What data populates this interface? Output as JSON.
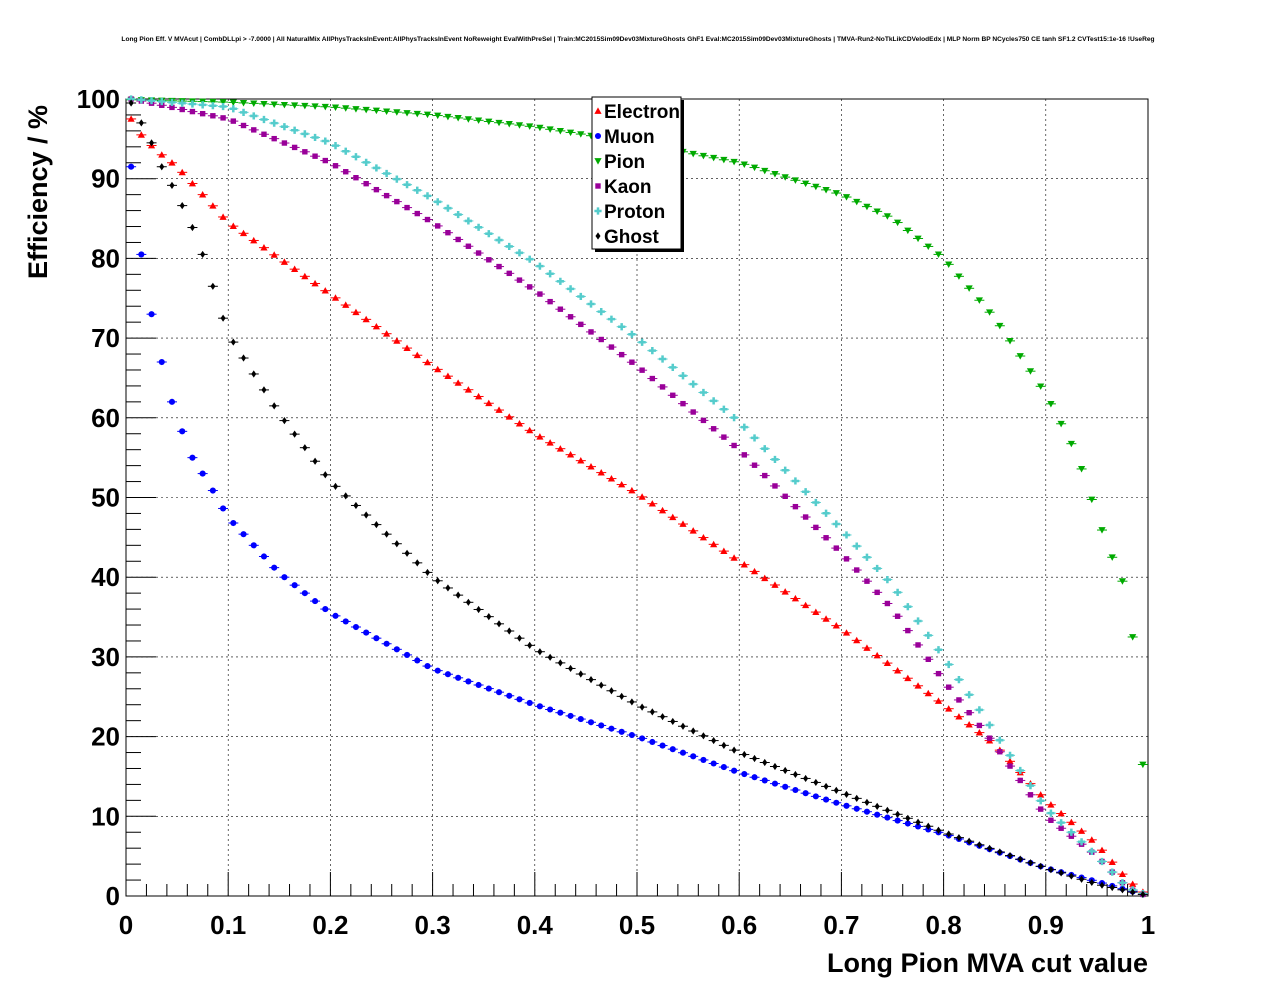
{
  "chart_data": {
    "type": "scatter",
    "title": "Long Pion Eff. V MVAcut | CombDLLpi > -7.0000 | All NaturalMix AllPhysTracksInEvent:AllPhysTracksInEvent NoReweight EvalWithPreSel | Train:MC2015Sim09Dev03MixtureGhosts GhF1 Eval:MC2015Sim09Dev03MixtureGhosts | TMVA-Run2-NoTkLikCDVelodEdx | MLP Norm BP NCycles750 CE tanh SF1.2 CVTest15:1e-16 !UseReg",
    "xlabel": "Long Pion MVA cut value",
    "ylabel": "Efficiency / %",
    "xlim": [
      0,
      1
    ],
    "ylim": [
      0,
      100
    ],
    "x_ticks": [
      "0",
      "0.1",
      "0.2",
      "0.3",
      "0.4",
      "0.5",
      "0.6",
      "0.7",
      "0.8",
      "0.9",
      "1"
    ],
    "y_ticks": [
      "0",
      "10",
      "20",
      "30",
      "40",
      "50",
      "60",
      "70",
      "80",
      "90",
      "100"
    ],
    "grid": true,
    "legend_placement": "top-center",
    "x_step": 0.01,
    "x_first": 0.005,
    "series": [
      {
        "name": "Electron",
        "color": "#ff0000",
        "marker": "triangle-up",
        "anchors": [
          [
            0.005,
            97.5
          ],
          [
            0.015,
            95.5
          ],
          [
            0.03,
            93.5
          ],
          [
            0.05,
            91.5
          ],
          [
            0.1,
            84.5
          ],
          [
            0.15,
            80.0
          ],
          [
            0.2,
            75.5
          ],
          [
            0.3,
            66.5
          ],
          [
            0.4,
            58.0
          ],
          [
            0.5,
            50.5
          ],
          [
            0.6,
            42.0
          ],
          [
            0.7,
            33.5
          ],
          [
            0.8,
            24.0
          ],
          [
            0.85,
            19.0
          ],
          [
            0.9,
            12.0
          ],
          [
            0.95,
            6.5
          ],
          [
            0.98,
            2.0
          ],
          [
            0.995,
            0.5
          ]
        ]
      },
      {
        "name": "Muon",
        "color": "#0000ff",
        "marker": "circle",
        "anchors": [
          [
            0.005,
            91.5
          ],
          [
            0.015,
            80.5
          ],
          [
            0.025,
            73.0
          ],
          [
            0.035,
            67.0
          ],
          [
            0.045,
            62.0
          ],
          [
            0.055,
            58.3
          ],
          [
            0.065,
            55.0
          ],
          [
            0.08,
            52.0
          ],
          [
            0.1,
            47.5
          ],
          [
            0.15,
            40.5
          ],
          [
            0.2,
            35.5
          ],
          [
            0.3,
            28.5
          ],
          [
            0.4,
            24.0
          ],
          [
            0.5,
            20.0
          ],
          [
            0.6,
            15.5
          ],
          [
            0.7,
            11.5
          ],
          [
            0.8,
            7.8
          ],
          [
            0.9,
            3.5
          ],
          [
            0.95,
            1.8
          ],
          [
            0.995,
            0.2
          ]
        ]
      },
      {
        "name": "Pion",
        "color": "#00aa00",
        "marker": "triangle-down",
        "anchors": [
          [
            0.005,
            99.9
          ],
          [
            0.1,
            99.6
          ],
          [
            0.2,
            99.0
          ],
          [
            0.3,
            98.0
          ],
          [
            0.4,
            96.5
          ],
          [
            0.5,
            94.5
          ],
          [
            0.6,
            92.0
          ],
          [
            0.7,
            88.0
          ],
          [
            0.75,
            85.0
          ],
          [
            0.8,
            80.0
          ],
          [
            0.85,
            72.5
          ],
          [
            0.9,
            63.0
          ],
          [
            0.93,
            55.5
          ],
          [
            0.96,
            44.0
          ],
          [
            0.975,
            39.5
          ],
          [
            0.985,
            32.5
          ],
          [
            0.995,
            16.5
          ]
        ]
      },
      {
        "name": "Kaon",
        "color": "#990099",
        "marker": "square",
        "anchors": [
          [
            0.005,
            100.0
          ],
          [
            0.1,
            97.5
          ],
          [
            0.2,
            92.0
          ],
          [
            0.3,
            84.5
          ],
          [
            0.4,
            76.0
          ],
          [
            0.5,
            66.5
          ],
          [
            0.6,
            56.0
          ],
          [
            0.7,
            43.0
          ],
          [
            0.75,
            36.0
          ],
          [
            0.8,
            27.0
          ],
          [
            0.85,
            19.0
          ],
          [
            0.9,
            10.0
          ],
          [
            0.95,
            5.0
          ],
          [
            0.98,
            1.0
          ],
          [
            0.995,
            0.2
          ]
        ]
      },
      {
        "name": "Proton",
        "color": "#55cccc",
        "marker": "cross",
        "anchors": [
          [
            0.005,
            100.0
          ],
          [
            0.1,
            99.0
          ],
          [
            0.2,
            94.5
          ],
          [
            0.3,
            87.5
          ],
          [
            0.4,
            79.5
          ],
          [
            0.5,
            70.0
          ],
          [
            0.6,
            59.5
          ],
          [
            0.7,
            46.0
          ],
          [
            0.75,
            39.0
          ],
          [
            0.8,
            30.0
          ],
          [
            0.85,
            20.5
          ],
          [
            0.9,
            11.0
          ],
          [
            0.95,
            5.0
          ],
          [
            0.98,
            1.0
          ],
          [
            0.995,
            0.3
          ]
        ]
      },
      {
        "name": "Ghost",
        "color": "#000000",
        "marker": "diamond",
        "anchors": [
          [
            0.005,
            99.5
          ],
          [
            0.015,
            97.0
          ],
          [
            0.025,
            94.5
          ],
          [
            0.035,
            91.5
          ],
          [
            0.05,
            88.0
          ],
          [
            0.07,
            82.5
          ],
          [
            0.1,
            70.5
          ],
          [
            0.15,
            60.5
          ],
          [
            0.2,
            52.0
          ],
          [
            0.3,
            40.0
          ],
          [
            0.4,
            31.0
          ],
          [
            0.5,
            24.0
          ],
          [
            0.6,
            18.0
          ],
          [
            0.7,
            13.0
          ],
          [
            0.8,
            8.0
          ],
          [
            0.9,
            3.5
          ],
          [
            0.95,
            1.5
          ],
          [
            0.995,
            0.2
          ]
        ]
      }
    ]
  }
}
